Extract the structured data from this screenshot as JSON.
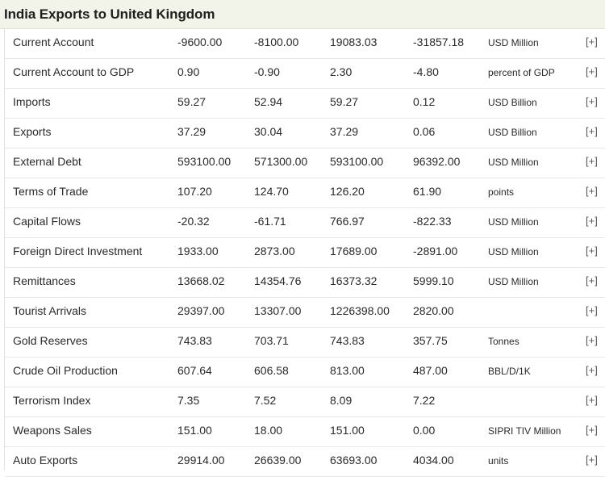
{
  "header": {
    "title": "India Exports to United Kingdom"
  },
  "table": {
    "expand_label": "[+]",
    "rows": [
      {
        "name": "Current Account",
        "v1": "-9600.00",
        "v2": "-8100.00",
        "v3": "19083.03",
        "v4": "-31857.18",
        "unit": "USD Million"
      },
      {
        "name": "Current Account to GDP",
        "v1": "0.90",
        "v2": "-0.90",
        "v3": "2.30",
        "v4": "-4.80",
        "unit": "percent of GDP"
      },
      {
        "name": "Imports",
        "v1": "59.27",
        "v2": "52.94",
        "v3": "59.27",
        "v4": "0.12",
        "unit": "USD Billion"
      },
      {
        "name": "Exports",
        "v1": "37.29",
        "v2": "30.04",
        "v3": "37.29",
        "v4": "0.06",
        "unit": "USD Billion"
      },
      {
        "name": "External Debt",
        "v1": "593100.00",
        "v2": "571300.00",
        "v3": "593100.00",
        "v4": "96392.00",
        "unit": "USD Million"
      },
      {
        "name": "Terms of Trade",
        "v1": "107.20",
        "v2": "124.70",
        "v3": "126.20",
        "v4": "61.90",
        "unit": "points"
      },
      {
        "name": "Capital Flows",
        "v1": "-20.32",
        "v2": "-61.71",
        "v3": "766.97",
        "v4": "-822.33",
        "unit": "USD Million"
      },
      {
        "name": "Foreign Direct Investment",
        "v1": "1933.00",
        "v2": "2873.00",
        "v3": "17689.00",
        "v4": "-2891.00",
        "unit": "USD Million"
      },
      {
        "name": "Remittances",
        "v1": "13668.02",
        "v2": "14354.76",
        "v3": "16373.32",
        "v4": "5999.10",
        "unit": "USD Million"
      },
      {
        "name": "Tourist Arrivals",
        "v1": "29397.00",
        "v2": "13307.00",
        "v3": "1226398.00",
        "v4": "2820.00",
        "unit": ""
      },
      {
        "name": "Gold Reserves",
        "v1": "743.83",
        "v2": "703.71",
        "v3": "743.83",
        "v4": "357.75",
        "unit": "Tonnes"
      },
      {
        "name": "Crude Oil Production",
        "v1": "607.64",
        "v2": "606.58",
        "v3": "813.00",
        "v4": "487.00",
        "unit": "BBL/D/1K"
      },
      {
        "name": "Terrorism Index",
        "v1": "7.35",
        "v2": "7.52",
        "v3": "8.09",
        "v4": "7.22",
        "unit": ""
      },
      {
        "name": "Weapons Sales",
        "v1": "151.00",
        "v2": "18.00",
        "v3": "151.00",
        "v4": "0.00",
        "unit": "SIPRI TIV Million"
      },
      {
        "name": "Auto Exports",
        "v1": "29914.00",
        "v2": "26639.00",
        "v3": "63693.00",
        "v4": "4034.00",
        "unit": "units"
      }
    ]
  }
}
